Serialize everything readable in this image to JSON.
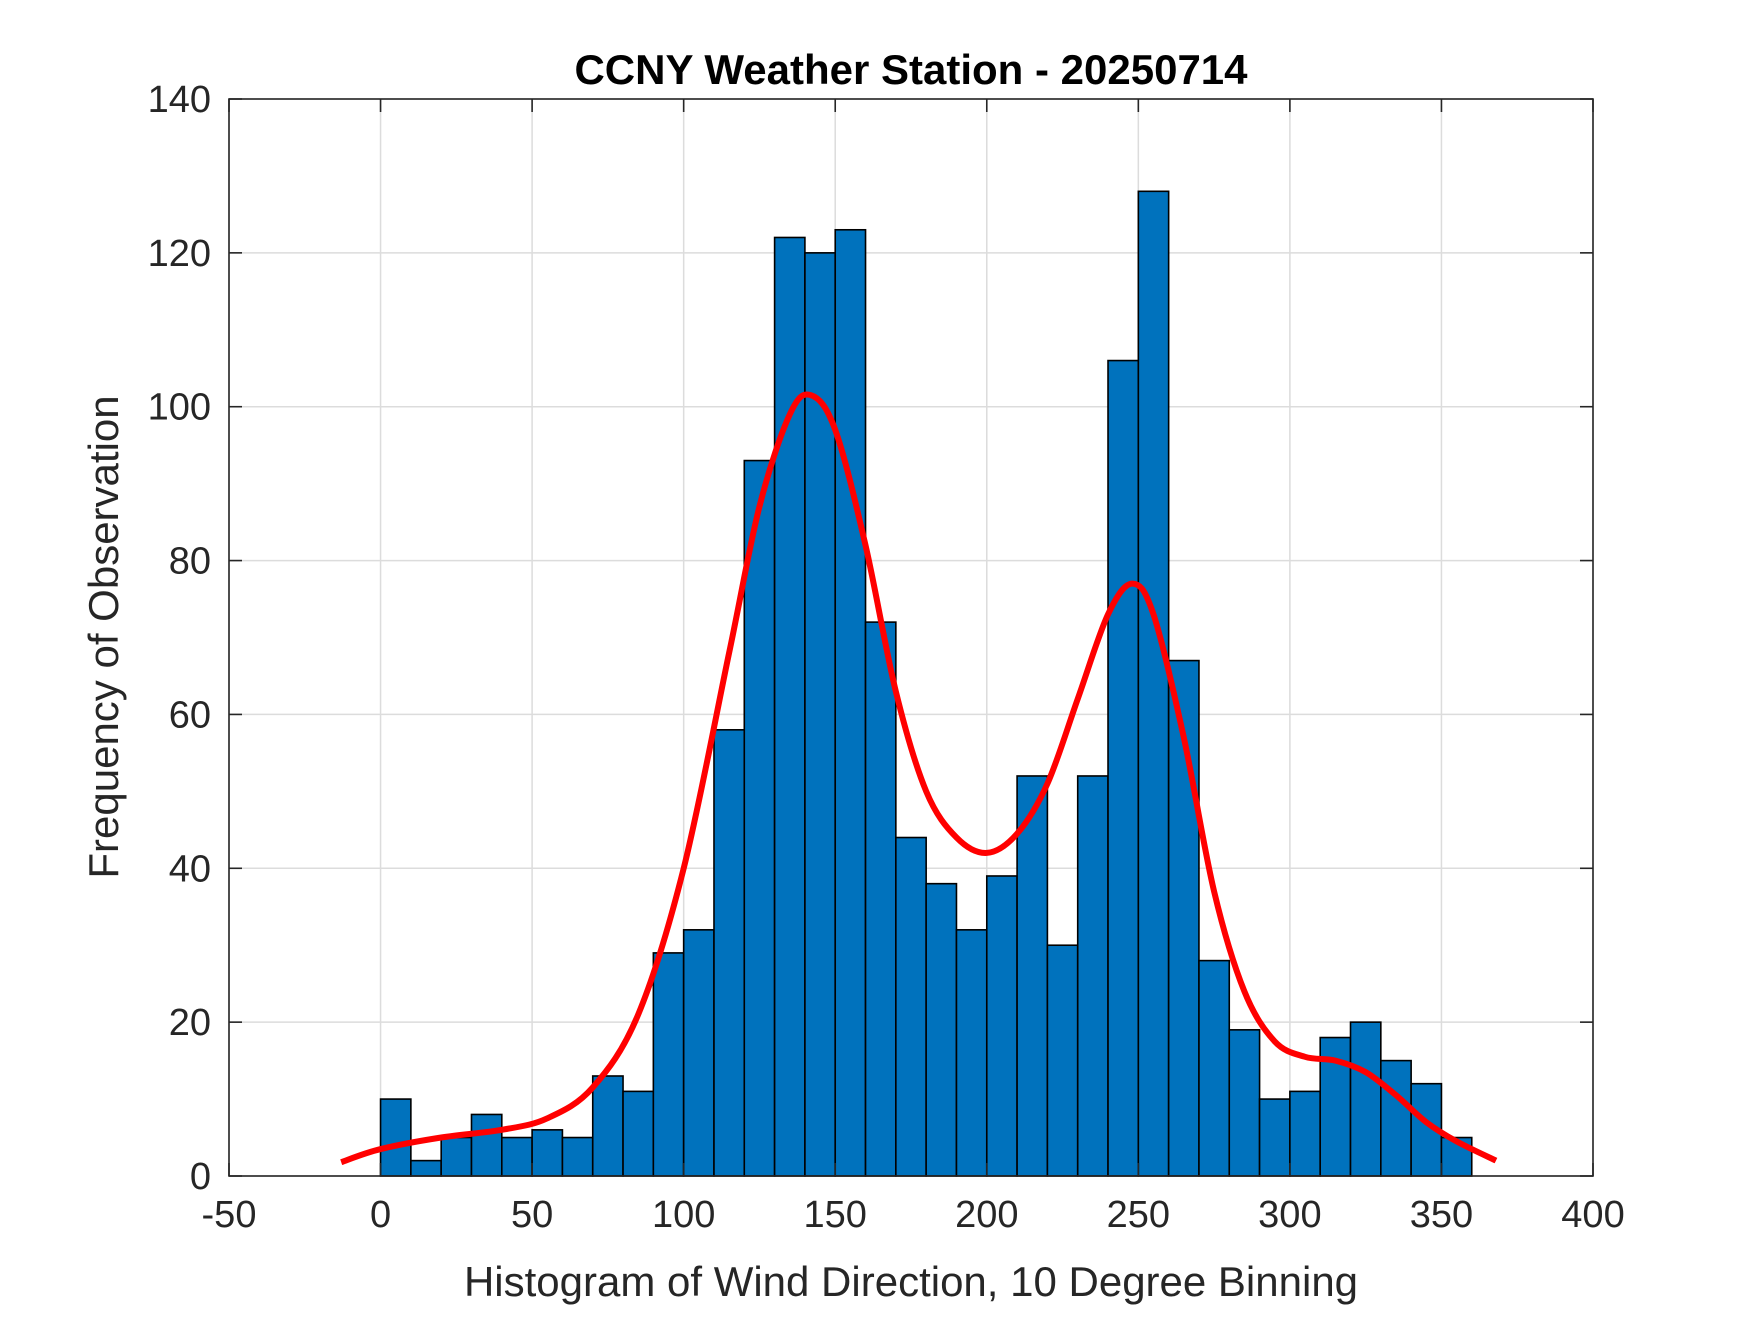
{
  "chart_data": {
    "type": "bar",
    "title": "CCNY Weather Station - 20250714",
    "xlabel": "Histogram of Wind Direction, 10 Degree Binning",
    "ylabel": "Frequency of Observation",
    "xlim": [
      -50,
      400
    ],
    "ylim": [
      0,
      140
    ],
    "xticks": [
      -50,
      0,
      50,
      100,
      150,
      200,
      250,
      300,
      350,
      400
    ],
    "yticks": [
      0,
      20,
      40,
      60,
      80,
      100,
      120,
      140
    ],
    "grid": true,
    "bin_width": 10,
    "bin_edges_start": [
      0,
      10,
      20,
      30,
      40,
      50,
      60,
      70,
      80,
      90,
      100,
      110,
      120,
      130,
      140,
      150,
      160,
      170,
      180,
      190,
      200,
      210,
      220,
      230,
      240,
      250,
      260,
      270,
      280,
      290,
      300,
      310,
      320,
      330,
      340,
      350
    ],
    "values": [
      10,
      2,
      5,
      8,
      5,
      6,
      5,
      13,
      11,
      29,
      32,
      58,
      93,
      122,
      120,
      123,
      72,
      44,
      38,
      32,
      39,
      52,
      30,
      52,
      106,
      128,
      67,
      28,
      19,
      10,
      11,
      18,
      20,
      15,
      12,
      5
    ],
    "bar_color": "#0072BD",
    "bar_edge_color": "#000000",
    "fit_curve": {
      "name": "density fit",
      "color": "#FF0000",
      "x": [
        -13,
        0,
        20,
        40,
        55,
        70,
        85,
        100,
        115,
        125,
        135,
        142,
        150,
        160,
        170,
        180,
        190,
        200,
        210,
        220,
        230,
        240,
        248,
        255,
        265,
        275,
        285,
        295,
        305,
        315,
        325,
        335,
        345,
        355,
        368
      ],
      "y": [
        1.8,
        3.5,
        5.0,
        6.0,
        7.5,
        11.5,
        21.0,
        40.0,
        68.0,
        87.0,
        99.0,
        101.5,
        97.0,
        82.0,
        63.0,
        50.0,
        44.0,
        42.0,
        44.5,
        51.0,
        62.0,
        73.0,
        77.0,
        73.0,
        57.0,
        37.0,
        24.0,
        17.5,
        15.5,
        15.0,
        13.5,
        10.5,
        7.0,
        4.5,
        2.0
      ]
    }
  }
}
